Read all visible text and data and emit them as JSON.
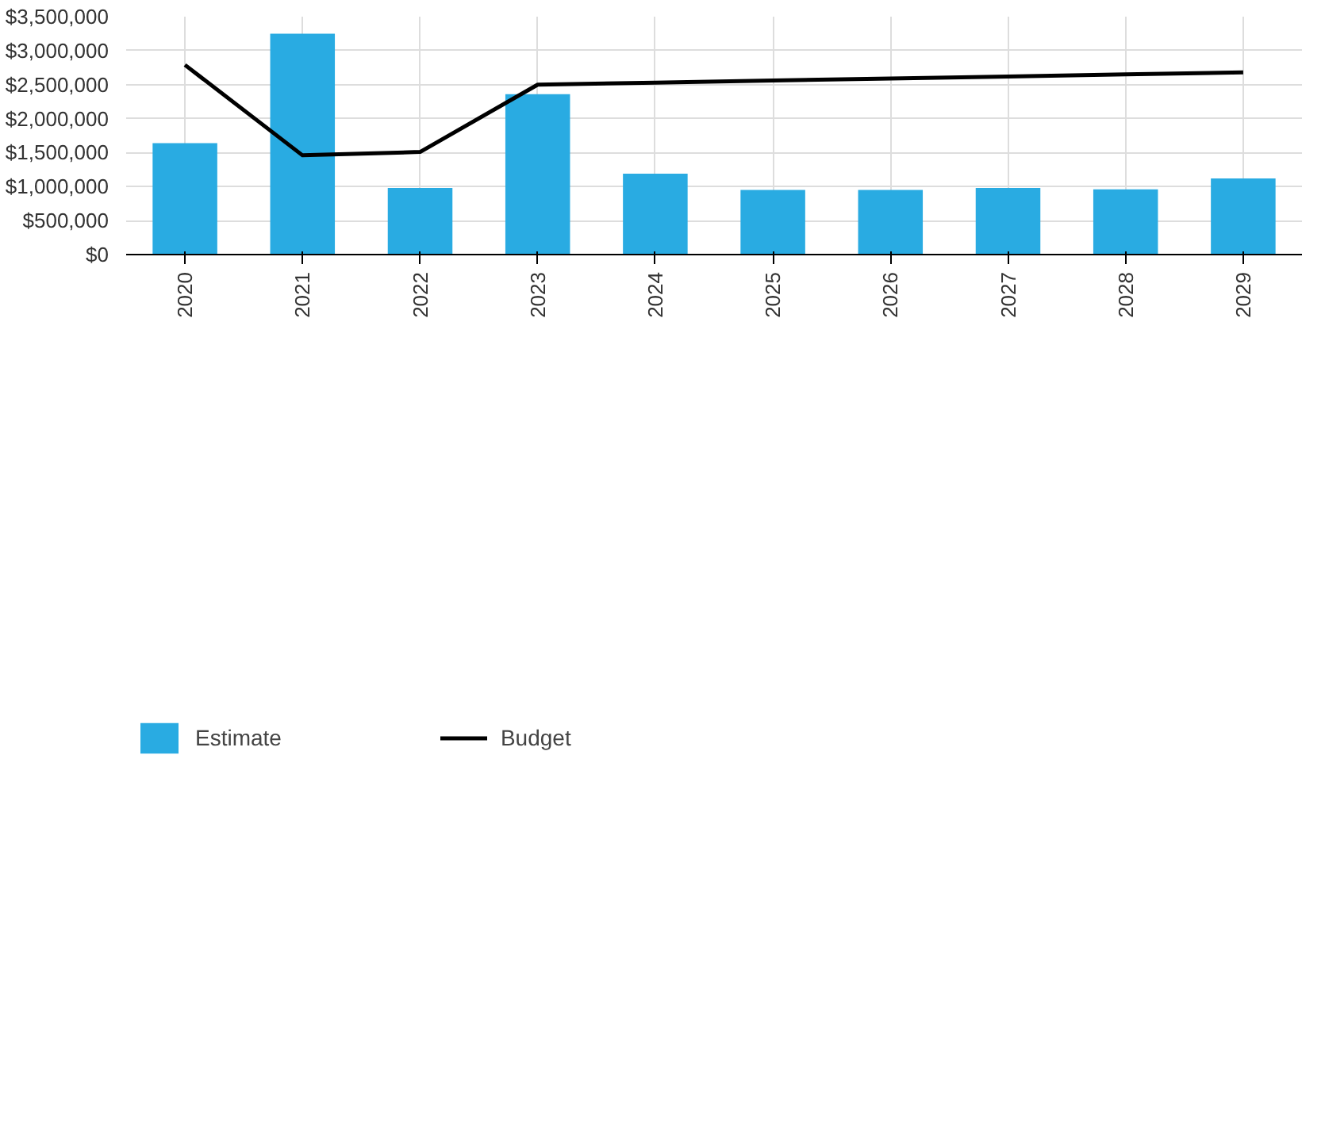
{
  "chart_data": {
    "type": "bar",
    "categories": [
      "2020",
      "2021",
      "2022",
      "2023",
      "2024",
      "2025",
      "2026",
      "2027",
      "2028",
      "2029"
    ],
    "series": [
      {
        "name": "Estimate",
        "color": "#29abe2",
        "values": [
          1640000,
          3250000,
          980000,
          2360000,
          1190000,
          950000,
          950000,
          980000,
          960000,
          1120000
        ]
      },
      {
        "name": "Budget",
        "type": "line",
        "color": "#000000",
        "values": [
          2790000,
          1460000,
          1510000,
          2500000,
          2530000,
          2560000,
          2590000,
          2620000,
          2650000,
          2680000
        ]
      }
    ],
    "ylim": [
      0,
      3500000
    ],
    "yticks": [
      {
        "value": 0,
        "label": "$0"
      },
      {
        "value": 500000,
        "label": "$500,000"
      },
      {
        "value": 1000000,
        "label": "$1,000,000"
      },
      {
        "value": 1500000,
        "label": "$1,500,000"
      },
      {
        "value": 2000000,
        "label": "$2,000,000"
      },
      {
        "value": 2500000,
        "label": "$2,500,000"
      },
      {
        "value": 3000000,
        "label": "$3,000,000"
      },
      {
        "value": 3500000,
        "label": "$3,500,000"
      }
    ],
    "grid": true,
    "legend": "bottom",
    "marker": "none",
    "line_style": "solid"
  }
}
